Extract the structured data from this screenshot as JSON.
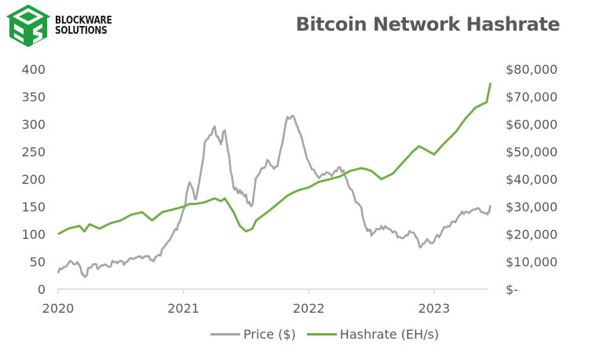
{
  "header": {
    "logo_line1": "BLOCKWARE",
    "logo_line2": "SOLUTIONS",
    "title": "Bitcoin Network Hashrate"
  },
  "colors": {
    "price": "#A6A6A6",
    "hashrate": "#70AD47",
    "logo_green": "#1E9E3E",
    "axis": "#D9D9D9",
    "text": "#595959"
  },
  "legend": [
    {
      "label": "Price ($)",
      "color": "#A6A6A6"
    },
    {
      "label": "Hashrate (EH/s)",
      "color": "#70AD47"
    }
  ],
  "chart_data": {
    "type": "line",
    "title": "Bitcoin Network Hashrate",
    "xlabel": "",
    "ylabel_left": "Hashrate (EH/s)",
    "ylabel_right": "Price ($)",
    "x_ticks": [
      "2020",
      "2021",
      "2022",
      "2023"
    ],
    "y_left_ticks": [
      "400",
      "350",
      "300",
      "250",
      "200",
      "150",
      "100",
      "50",
      "0"
    ],
    "y_right_ticks": [
      "$80,000",
      "$70,000",
      "$60,000",
      "$50,000",
      "$40,000",
      "$30,000",
      "$20,000",
      "$10,000",
      "$-"
    ],
    "ylim_left": [
      0,
      400
    ],
    "ylim_right": [
      0,
      80000
    ],
    "xlim": [
      2020.0,
      2023.45
    ],
    "grid": false,
    "legend_position": "bottom",
    "x": [
      2020.0,
      2020.08,
      2020.17,
      2020.21,
      2020.25,
      2020.33,
      2020.42,
      2020.5,
      2020.58,
      2020.67,
      2020.75,
      2020.83,
      2020.92,
      2021.0,
      2021.05,
      2021.1,
      2021.17,
      2021.25,
      2021.3,
      2021.33,
      2021.4,
      2021.45,
      2021.5,
      2021.55,
      2021.58,
      2021.67,
      2021.75,
      2021.83,
      2021.87,
      2021.92,
      2022.0,
      2022.08,
      2022.17,
      2022.25,
      2022.33,
      2022.42,
      2022.46,
      2022.5,
      2022.58,
      2022.67,
      2022.75,
      2022.83,
      2022.88,
      2022.92,
      2023.0,
      2023.08,
      2023.17,
      2023.25,
      2023.33,
      2023.42,
      2023.45
    ],
    "series": [
      {
        "name": "Price ($)",
        "axis": "right",
        "values": [
          7200,
          9500,
          8500,
          5200,
          6800,
          9000,
          9600,
          9200,
          11500,
          11000,
          10800,
          13500,
          19000,
          29000,
          38000,
          33000,
          52000,
          58000,
          54000,
          57000,
          38000,
          35000,
          33000,
          31000,
          40000,
          47000,
          44000,
          62000,
          64000,
          57000,
          47000,
          40000,
          42000,
          45000,
          36000,
          30000,
          21000,
          20500,
          23500,
          20000,
          19500,
          20500,
          16500,
          17000,
          16500,
          23000,
          24000,
          28500,
          29500,
          26500,
          30500
        ]
      },
      {
        "name": "Hashrate (EH/s)",
        "axis": "left",
        "values": [
          100,
          110,
          115,
          105,
          118,
          110,
          120,
          125,
          135,
          140,
          125,
          140,
          145,
          150,
          155,
          155,
          158,
          165,
          160,
          165,
          140,
          115,
          105,
          110,
          125,
          140,
          155,
          170,
          175,
          180,
          185,
          195,
          200,
          205,
          215,
          220,
          218,
          215,
          200,
          210,
          230,
          250,
          260,
          255,
          245,
          265,
          285,
          310,
          330,
          340,
          375
        ]
      }
    ]
  }
}
